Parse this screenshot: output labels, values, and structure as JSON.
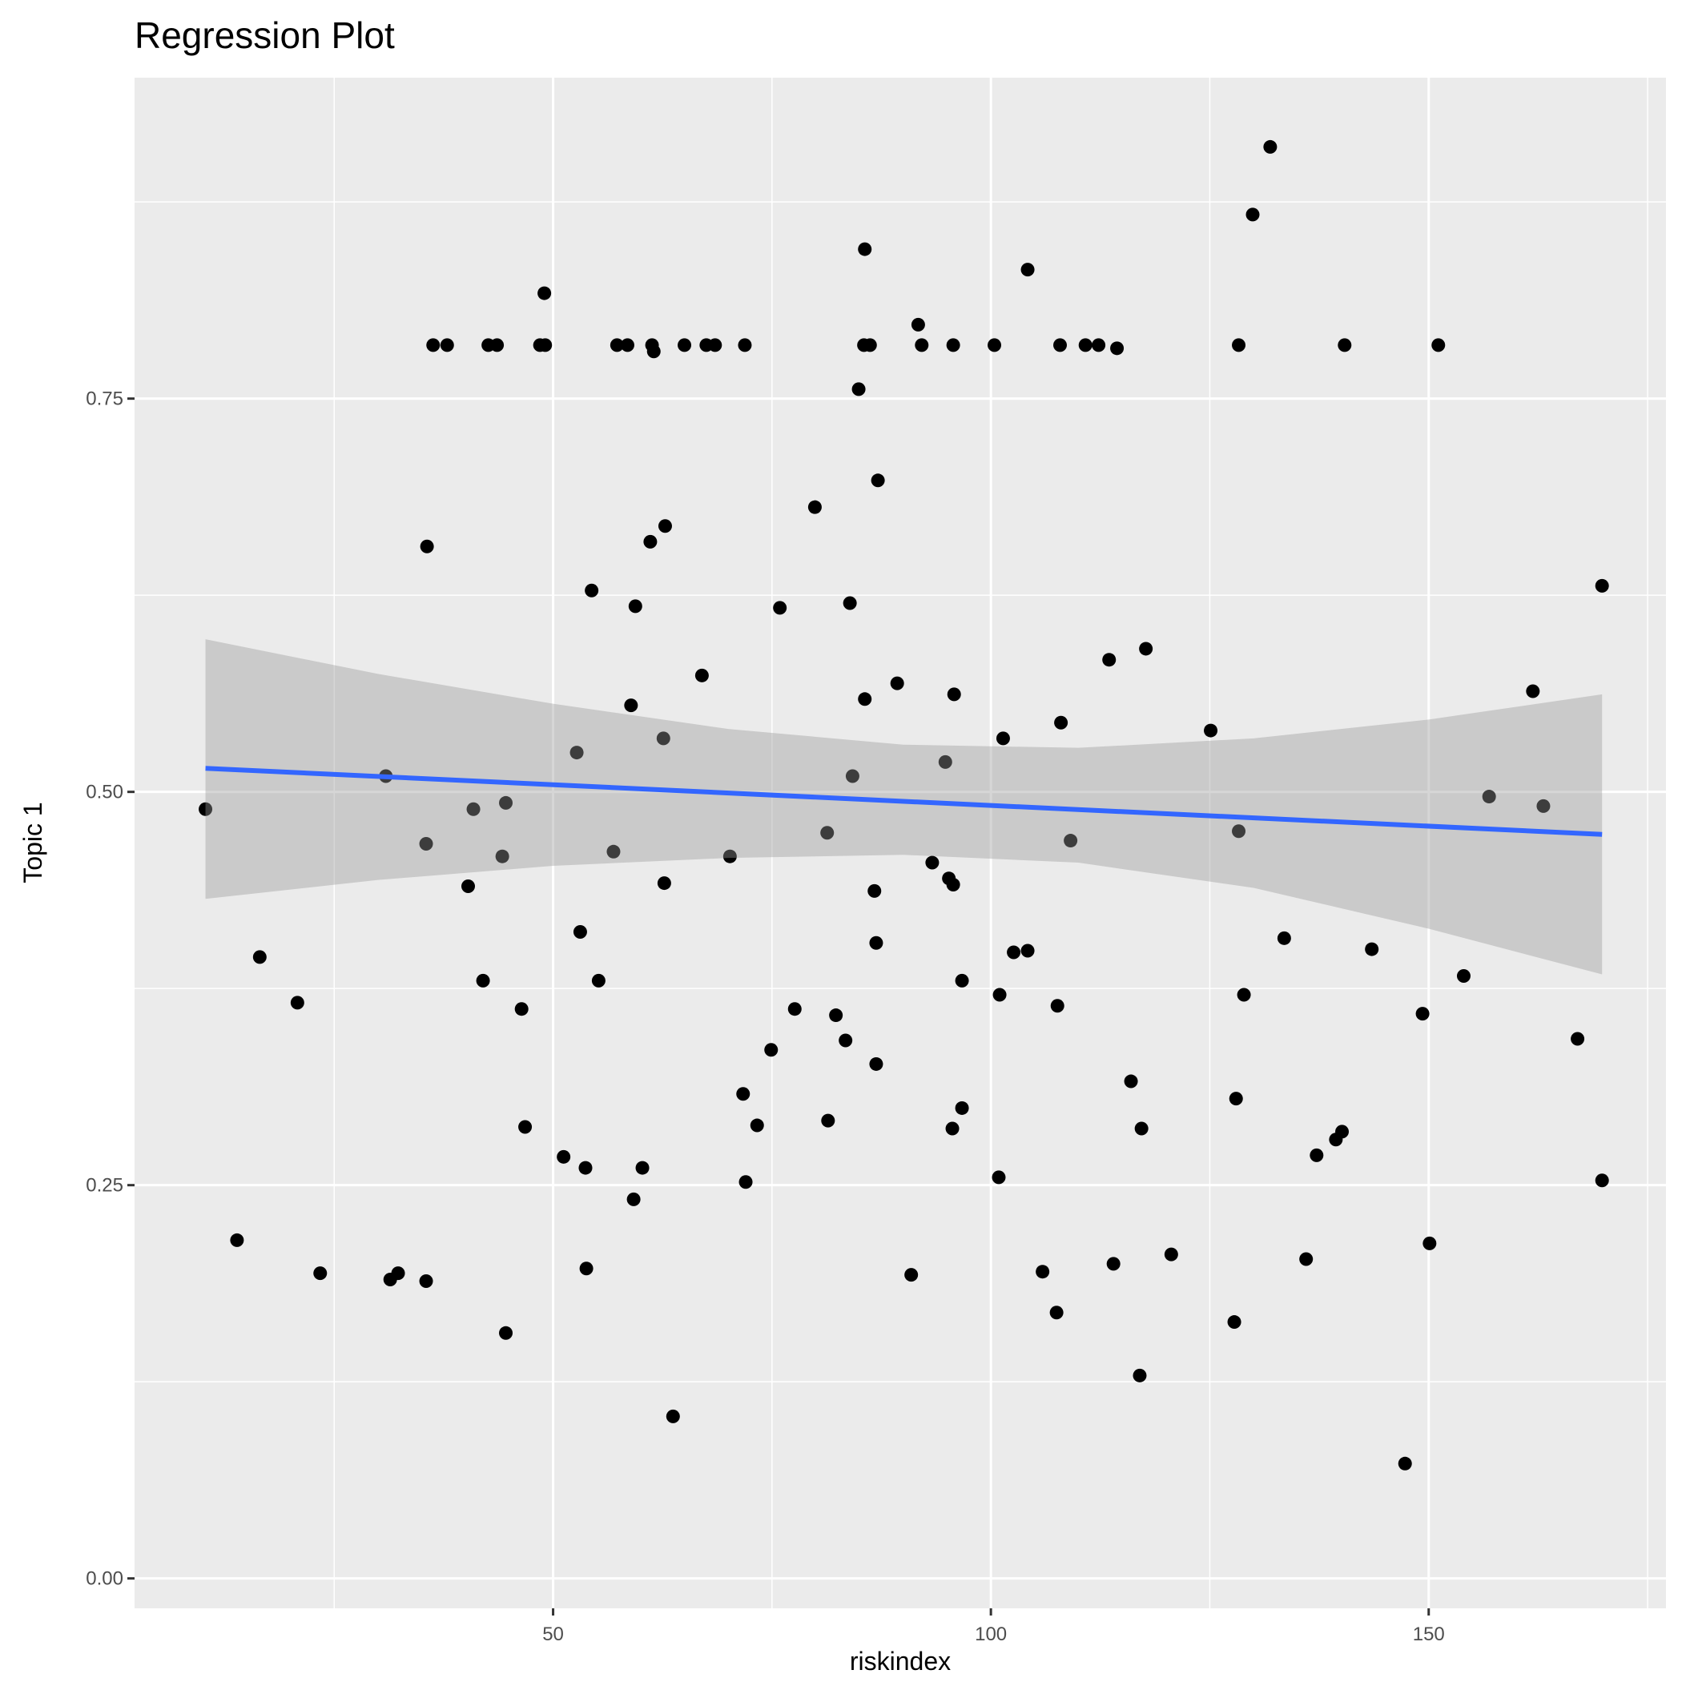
{
  "chart_data": {
    "type": "scatter",
    "title": "Regression Plot",
    "xlabel": "riskindex",
    "ylabel": "Topic 1",
    "xlim": [
      2.2,
      177.1
    ],
    "ylim": [
      -0.019,
      0.954
    ],
    "x_ticks": [
      50,
      100,
      150
    ],
    "x_tick_labels": [
      "50",
      "100",
      "150"
    ],
    "x_minor": [
      25,
      75,
      125,
      175
    ],
    "y_ticks": [
      0,
      0.25,
      0.5,
      0.75
    ],
    "y_tick_labels": [
      "0.00",
      "0.25",
      "0.50",
      "0.75"
    ],
    "y_minor": [
      0.125,
      0.375,
      0.625,
      0.875
    ],
    "grid": true,
    "colors": {
      "panel": "#EBEBEB",
      "grid": "#FFFFFF",
      "points": "#000000",
      "line": "#3366FF",
      "ribbon": "#999999"
    },
    "points": [
      [
        10.3,
        0.489
      ],
      [
        13.9,
        0.215
      ],
      [
        16.5,
        0.395
      ],
      [
        20.8,
        0.366
      ],
      [
        23.4,
        0.194
      ],
      [
        30.9,
        0.51
      ],
      [
        31.4,
        0.19
      ],
      [
        32.3,
        0.194
      ],
      [
        35.5,
        0.189
      ],
      [
        35.5,
        0.467
      ],
      [
        35.6,
        0.656
      ],
      [
        36.3,
        0.784
      ],
      [
        37.9,
        0.784
      ],
      [
        40.3,
        0.44
      ],
      [
        40.9,
        0.489
      ],
      [
        42.0,
        0.38
      ],
      [
        42.6,
        0.784
      ],
      [
        43.6,
        0.784
      ],
      [
        44.2,
        0.459
      ],
      [
        44.6,
        0.493
      ],
      [
        44.6,
        0.156
      ],
      [
        46.4,
        0.362
      ],
      [
        46.8,
        0.287
      ],
      [
        49.0,
        0.817
      ],
      [
        48.5,
        0.784
      ],
      [
        49.1,
        0.784
      ],
      [
        51.2,
        0.268
      ],
      [
        52.7,
        0.525
      ],
      [
        53.1,
        0.411
      ],
      [
        53.7,
        0.261
      ],
      [
        53.8,
        0.197
      ],
      [
        54.4,
        0.628
      ],
      [
        55.2,
        0.38
      ],
      [
        56.9,
        0.462
      ],
      [
        57.3,
        0.784
      ],
      [
        58.5,
        0.784
      ],
      [
        58.9,
        0.555
      ],
      [
        59.2,
        0.241
      ],
      [
        59.4,
        0.618
      ],
      [
        60.2,
        0.261
      ],
      [
        61.1,
        0.659
      ],
      [
        61.3,
        0.784
      ],
      [
        61.5,
        0.78
      ],
      [
        62.6,
        0.534
      ],
      [
        62.7,
        0.442
      ],
      [
        62.8,
        0.669
      ],
      [
        63.7,
        0.103
      ],
      [
        65.0,
        0.784
      ],
      [
        67.0,
        0.574
      ],
      [
        67.5,
        0.784
      ],
      [
        68.5,
        0.784
      ],
      [
        70.2,
        0.459
      ],
      [
        71.7,
        0.308
      ],
      [
        71.9,
        0.784
      ],
      [
        72.0,
        0.252
      ],
      [
        73.3,
        0.288
      ],
      [
        74.9,
        0.336
      ],
      [
        75.9,
        0.617
      ],
      [
        77.6,
        0.362
      ],
      [
        79.9,
        0.681
      ],
      [
        81.3,
        0.474
      ],
      [
        81.4,
        0.291
      ],
      [
        82.3,
        0.358
      ],
      [
        83.4,
        0.342
      ],
      [
        83.9,
        0.62
      ],
      [
        84.2,
        0.51
      ],
      [
        84.9,
        0.756
      ],
      [
        85.5,
        0.784
      ],
      [
        85.6,
        0.845
      ],
      [
        85.6,
        0.559
      ],
      [
        86.2,
        0.784
      ],
      [
        86.7,
        0.437
      ],
      [
        86.9,
        0.404
      ],
      [
        86.9,
        0.327
      ],
      [
        87.1,
        0.698
      ],
      [
        89.3,
        0.569
      ],
      [
        90.9,
        0.193
      ],
      [
        91.7,
        0.797
      ],
      [
        92.1,
        0.784
      ],
      [
        93.3,
        0.455
      ],
      [
        94.8,
        0.519
      ],
      [
        95.2,
        0.445
      ],
      [
        95.6,
        0.286
      ],
      [
        95.7,
        0.441
      ],
      [
        95.7,
        0.784
      ],
      [
        95.8,
        0.562
      ],
      [
        96.7,
        0.38
      ],
      [
        96.7,
        0.299
      ],
      [
        100.4,
        0.784
      ],
      [
        100.9,
        0.255
      ],
      [
        101.0,
        0.371
      ],
      [
        101.4,
        0.534
      ],
      [
        102.6,
        0.398
      ],
      [
        104.2,
        0.832
      ],
      [
        104.2,
        0.399
      ],
      [
        105.9,
        0.195
      ],
      [
        107.5,
        0.169
      ],
      [
        107.6,
        0.364
      ],
      [
        107.9,
        0.784
      ],
      [
        108.0,
        0.544
      ],
      [
        109.1,
        0.469
      ],
      [
        110.8,
        0.784
      ],
      [
        112.3,
        0.784
      ],
      [
        113.5,
        0.584
      ],
      [
        114.0,
        0.2
      ],
      [
        114.4,
        0.782
      ],
      [
        116.0,
        0.316
      ],
      [
        117.0,
        0.129
      ],
      [
        117.2,
        0.286
      ],
      [
        117.7,
        0.591
      ],
      [
        120.6,
        0.206
      ],
      [
        125.1,
        0.539
      ],
      [
        127.8,
        0.163
      ],
      [
        128.0,
        0.305
      ],
      [
        128.3,
        0.784
      ],
      [
        128.3,
        0.475
      ],
      [
        128.9,
        0.371
      ],
      [
        129.9,
        0.867
      ],
      [
        131.9,
        0.91
      ],
      [
        133.5,
        0.407
      ],
      [
        136.0,
        0.203
      ],
      [
        137.2,
        0.269
      ],
      [
        139.4,
        0.279
      ],
      [
        140.1,
        0.284
      ],
      [
        140.4,
        0.784
      ],
      [
        143.5,
        0.4
      ],
      [
        147.3,
        0.073
      ],
      [
        149.3,
        0.359
      ],
      [
        150.1,
        0.213
      ],
      [
        151.1,
        0.784
      ],
      [
        154.0,
        0.383
      ],
      [
        156.9,
        0.497
      ],
      [
        161.9,
        0.564
      ],
      [
        163.1,
        0.491
      ],
      [
        167.0,
        0.343
      ],
      [
        169.8,
        0.631
      ],
      [
        169.8,
        0.253
      ]
    ],
    "fit_line": {
      "x": [
        10.3,
        169.8
      ],
      "y": [
        0.515,
        0.473
      ]
    },
    "confidence_band": {
      "x": [
        10.3,
        30,
        50,
        70,
        90,
        110,
        130,
        150,
        169.8
      ],
      "ymin": [
        0.432,
        0.444,
        0.453,
        0.458,
        0.46,
        0.455,
        0.439,
        0.413,
        0.384
      ],
      "ymax": [
        0.597,
        0.575,
        0.556,
        0.54,
        0.53,
        0.528,
        0.534,
        0.546,
        0.562
      ]
    }
  }
}
